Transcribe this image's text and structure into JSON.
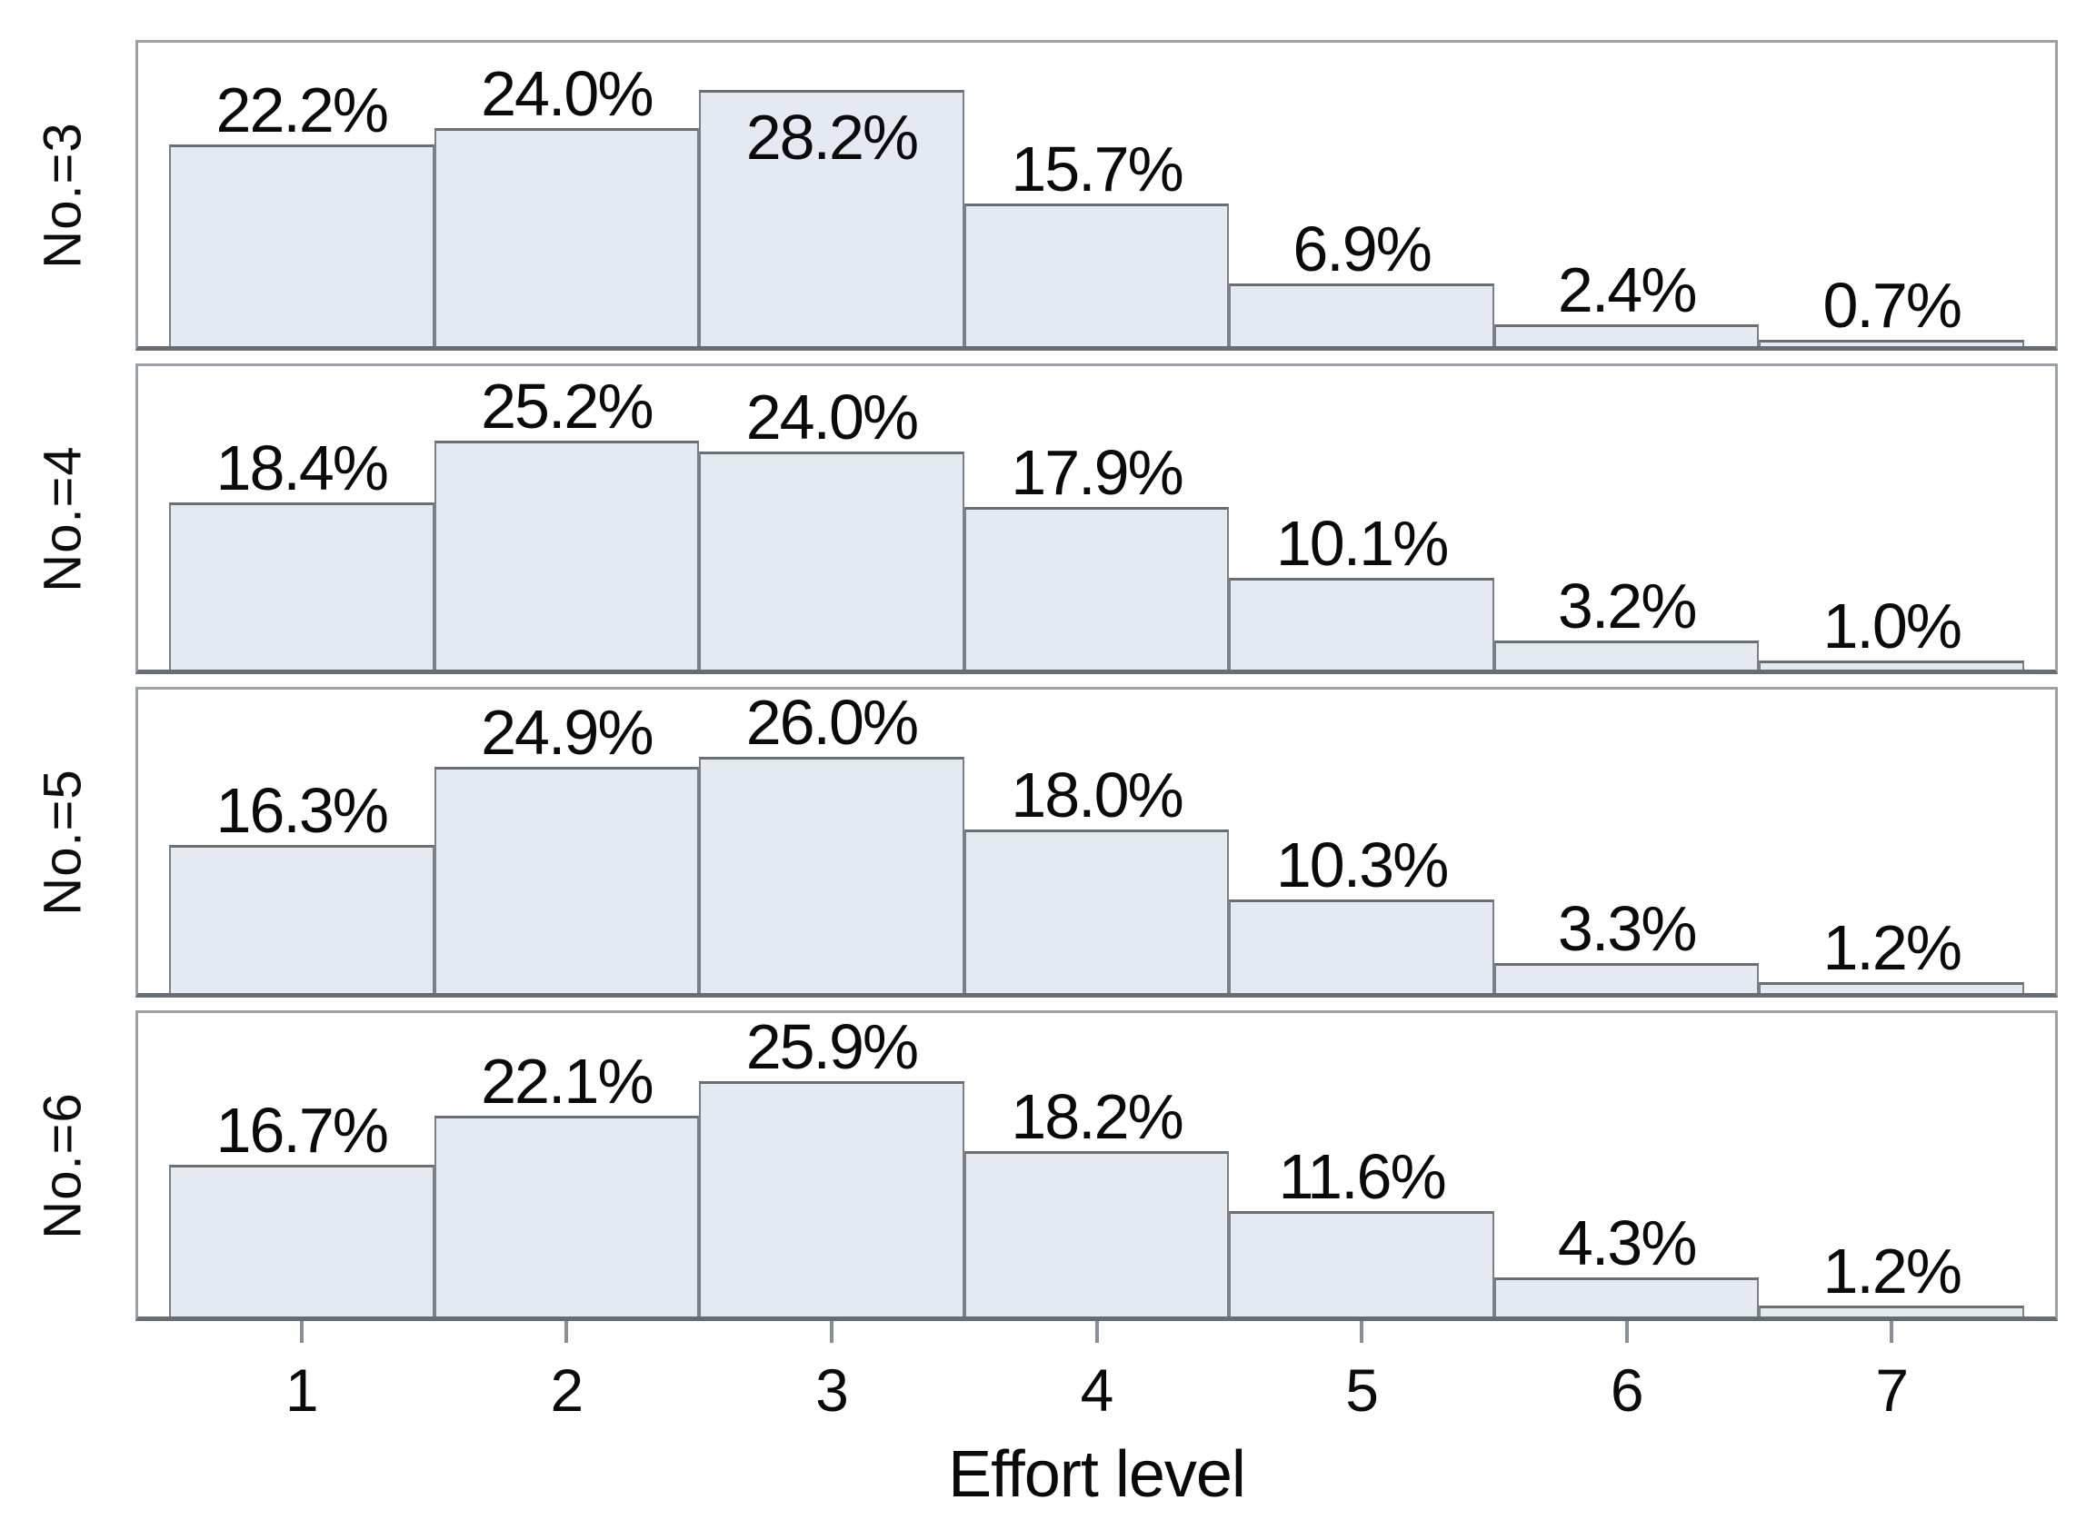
{
  "figure": {
    "xlabel": "Effort level",
    "x_tick_labels": [
      "1",
      "2",
      "3",
      "4",
      "5",
      "6",
      "7"
    ],
    "facet_labels": [
      "No.=3",
      "No.=4",
      "No.=5",
      "No.=6"
    ],
    "colors": {
      "bar_fill": "#e5eaf2",
      "bar_border": "#7a8086",
      "panel_border": "#9aa1a8",
      "axis_line": "#666d74",
      "text": "#0a0a0a",
      "background": "#ffffff"
    }
  },
  "chart_data": {
    "type": "bar",
    "subtype": "faceted-histogram",
    "categories": [
      1,
      2,
      3,
      4,
      5,
      6,
      7
    ],
    "xlabel": "Effort level",
    "ylabel": "",
    "title": "",
    "value_suffix": "%",
    "ylim": [
      0,
      33.4
    ],
    "grid": false,
    "legend": "none",
    "label_inside_threshold": 0.82,
    "facets": [
      {
        "label": "No.=3",
        "values": [
          22.2,
          24.0,
          28.2,
          15.7,
          6.9,
          2.4,
          0.7
        ]
      },
      {
        "label": "No.=4",
        "values": [
          18.4,
          25.2,
          24.0,
          17.9,
          10.1,
          3.2,
          1.0
        ]
      },
      {
        "label": "No.=5",
        "values": [
          16.3,
          24.9,
          26.0,
          18.0,
          10.3,
          3.3,
          1.2
        ]
      },
      {
        "label": "No.=6",
        "values": [
          16.7,
          22.1,
          25.9,
          18.2,
          11.6,
          4.3,
          1.2
        ]
      }
    ]
  }
}
